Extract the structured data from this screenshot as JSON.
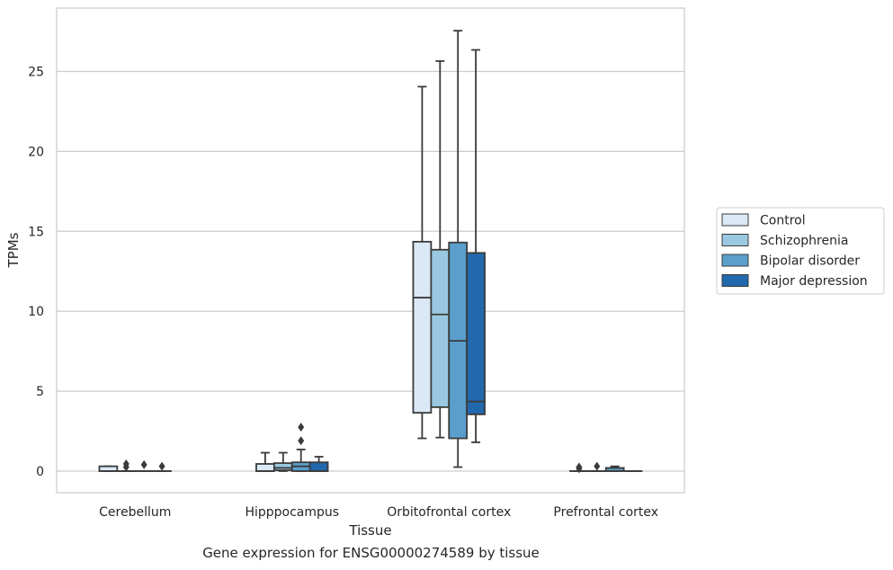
{
  "caption": "Gene expression for ENSG00000274589 by tissue",
  "chart_data": {
    "type": "box",
    "xlabel": "Tissue",
    "ylabel": "TPMs",
    "ylim": [
      -1.3,
      29.2
    ],
    "yticks": [
      0,
      5,
      10,
      15,
      20,
      25
    ],
    "grid": "horizontal",
    "legend_position": "right",
    "categories": [
      "Cerebellum",
      "Hipppocampus",
      "Orbitofrontal cortex",
      "Prefrontal cortex"
    ],
    "series": [
      {
        "name": "Control",
        "color": "#dbe9f6",
        "boxes": [
          {
            "whislo": 0.0,
            "q1": 0.0,
            "med": 0.0,
            "q3": 0.3,
            "whishi": 0.3,
            "fliers": []
          },
          {
            "whislo": 0.0,
            "q1": 0.0,
            "med": 0.0,
            "q3": 0.45,
            "whishi": 1.15,
            "fliers": []
          },
          {
            "whislo": 2.05,
            "q1": 3.65,
            "med": 10.85,
            "q3": 14.35,
            "whishi": 24.05,
            "fliers": []
          },
          {
            "whislo": 0.0,
            "q1": 0.0,
            "med": 0.0,
            "q3": 0.0,
            "whishi": 0.0,
            "fliers": [
              0.15,
              0.25
            ]
          }
        ]
      },
      {
        "name": "Schizophrenia",
        "color": "#9ac8e0",
        "boxes": [
          {
            "whislo": 0.0,
            "q1": 0.0,
            "med": 0.0,
            "q3": 0.0,
            "whishi": 0.0,
            "fliers": [
              0.25,
              0.45
            ]
          },
          {
            "whislo": 0.0,
            "q1": 0.05,
            "med": 0.2,
            "q3": 0.5,
            "whishi": 1.15,
            "fliers": []
          },
          {
            "whislo": 2.1,
            "q1": 4.0,
            "med": 9.8,
            "q3": 13.85,
            "whishi": 25.65,
            "fliers": []
          },
          {
            "whislo": 0.0,
            "q1": 0.0,
            "med": 0.0,
            "q3": 0.0,
            "whishi": 0.0,
            "fliers": [
              0.3
            ]
          }
        ]
      },
      {
        "name": "Bipolar disorder",
        "color": "#5a9fcc",
        "boxes": [
          {
            "whislo": 0.0,
            "q1": 0.0,
            "med": 0.0,
            "q3": 0.0,
            "whishi": 0.0,
            "fliers": [
              0.4
            ]
          },
          {
            "whislo": 0.0,
            "q1": 0.0,
            "med": 0.3,
            "q3": 0.55,
            "whishi": 1.35,
            "fliers": [
              1.9,
              2.75
            ]
          },
          {
            "whislo": 0.25,
            "q1": 2.05,
            "med": 8.15,
            "q3": 14.3,
            "whishi": 27.55,
            "fliers": []
          },
          {
            "whislo": 0.0,
            "q1": 0.0,
            "med": 0.0,
            "q3": 0.2,
            "whishi": 0.3,
            "fliers": []
          }
        ]
      },
      {
        "name": "Major depression",
        "color": "#2268ac",
        "boxes": [
          {
            "whislo": 0.0,
            "q1": 0.0,
            "med": 0.0,
            "q3": 0.0,
            "whishi": 0.0,
            "fliers": [
              0.3
            ]
          },
          {
            "whislo": 0.0,
            "q1": 0.0,
            "med": 0.0,
            "q3": 0.55,
            "whishi": 0.9,
            "fliers": []
          },
          {
            "whislo": 1.8,
            "q1": 3.55,
            "med": 4.35,
            "q3": 13.65,
            "whishi": 26.35,
            "fliers": []
          },
          {
            "whislo": 0.0,
            "q1": 0.0,
            "med": 0.0,
            "q3": 0.0,
            "whishi": 0.0,
            "fliers": []
          }
        ]
      }
    ]
  }
}
